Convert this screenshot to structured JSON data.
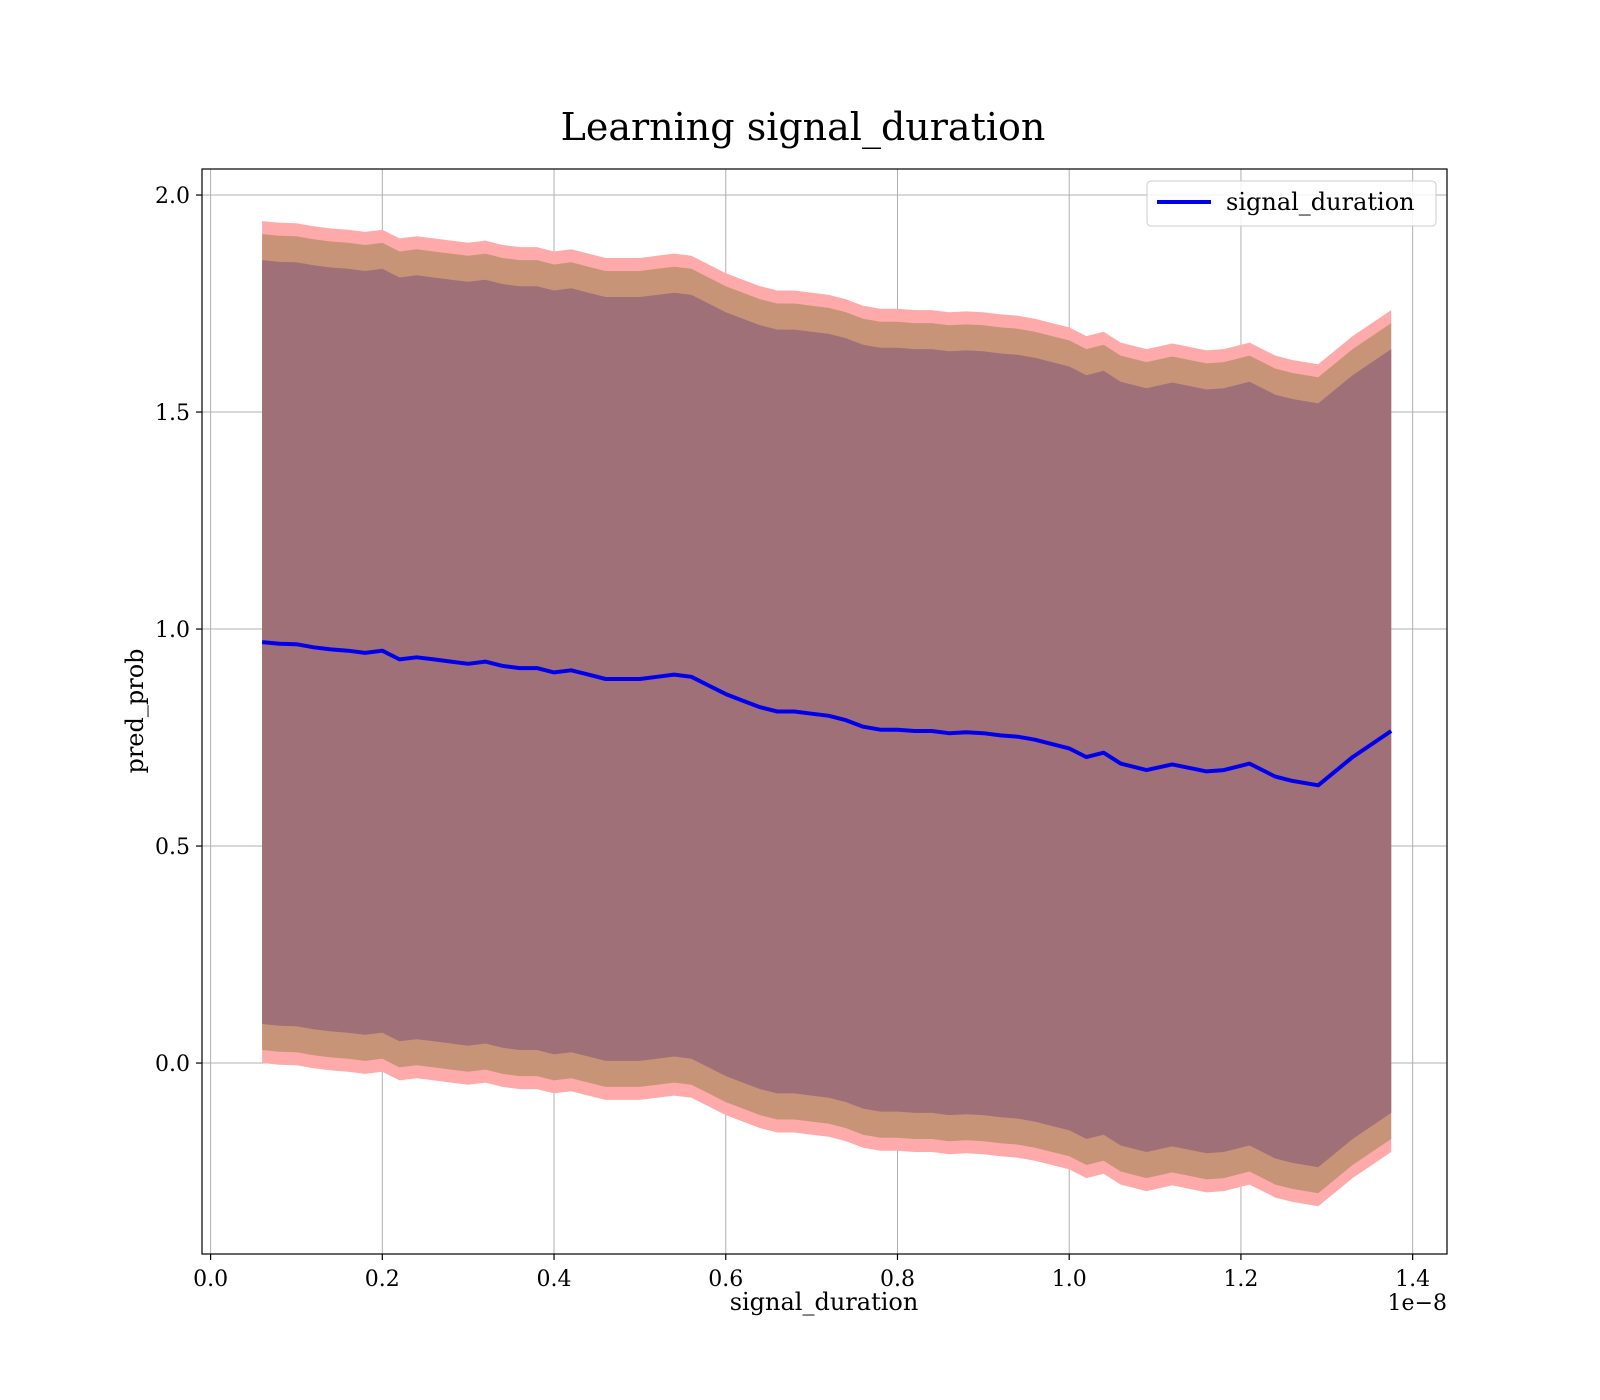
{
  "chart_data": {
    "type": "line",
    "title": "Learning signal_duration",
    "xlabel": "signal_duration",
    "ylabel": "pred_prob",
    "x_offset_text": "1e−8",
    "xlim": [
      -0.01,
      1.44
    ],
    "ylim": [
      -0.44,
      2.06
    ],
    "x_ticks": [
      0.0,
      0.2,
      0.4,
      0.6,
      0.8,
      1.0,
      1.2,
      1.4
    ],
    "x_tick_labels": [
      "0.0",
      "0.2",
      "0.4",
      "0.6",
      "0.8",
      "1.0",
      "1.2",
      "1.4"
    ],
    "y_ticks": [
      0.0,
      0.5,
      1.0,
      1.5,
      2.0
    ],
    "y_tick_labels": [
      "0.0",
      "0.5",
      "1.0",
      "1.5",
      "2.0"
    ],
    "grid": true,
    "legend": {
      "position": "top-right",
      "entries": [
        "signal_duration"
      ]
    },
    "colors": {
      "line": "#0000ee",
      "band_outer": "#ffaaaa",
      "band_middle": "#c89478",
      "band_inner": "#a07078",
      "grid": "#b0b0b0"
    },
    "band_offsets": {
      "inner": 0.88,
      "middle": 0.94,
      "outer": 0.97
    },
    "series": [
      {
        "name": "signal_duration",
        "x": [
          0.06,
          0.08,
          0.1,
          0.12,
          0.14,
          0.16,
          0.18,
          0.2,
          0.22,
          0.24,
          0.26,
          0.28,
          0.3,
          0.32,
          0.34,
          0.36,
          0.38,
          0.4,
          0.42,
          0.44,
          0.46,
          0.48,
          0.5,
          0.52,
          0.54,
          0.56,
          0.58,
          0.6,
          0.62,
          0.64,
          0.66,
          0.68,
          0.7,
          0.72,
          0.74,
          0.76,
          0.78,
          0.8,
          0.82,
          0.84,
          0.86,
          0.88,
          0.9,
          0.92,
          0.94,
          0.96,
          0.98,
          1.0,
          1.02,
          1.04,
          1.06,
          1.09,
          1.12,
          1.16,
          1.18,
          1.21,
          1.24,
          1.26,
          1.29,
          1.33,
          1.375
        ],
        "values": [
          0.97,
          0.966,
          0.965,
          0.958,
          0.953,
          0.95,
          0.945,
          0.95,
          0.93,
          0.935,
          0.93,
          0.925,
          0.92,
          0.925,
          0.915,
          0.91,
          0.91,
          0.9,
          0.905,
          0.895,
          0.885,
          0.885,
          0.885,
          0.89,
          0.895,
          0.89,
          0.87,
          0.85,
          0.835,
          0.82,
          0.81,
          0.81,
          0.805,
          0.8,
          0.79,
          0.775,
          0.768,
          0.768,
          0.765,
          0.765,
          0.76,
          0.762,
          0.76,
          0.755,
          0.752,
          0.745,
          0.735,
          0.725,
          0.705,
          0.715,
          0.69,
          0.675,
          0.688,
          0.672,
          0.675,
          0.69,
          0.66,
          0.65,
          0.64,
          0.705,
          0.765
        ]
      }
    ]
  }
}
